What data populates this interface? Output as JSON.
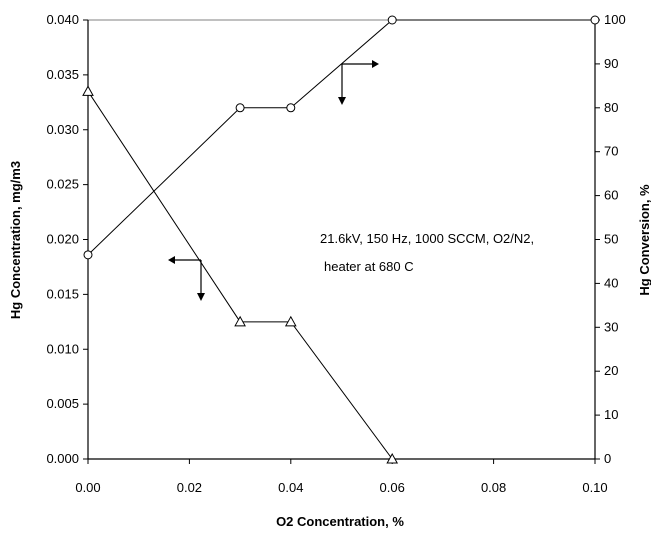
{
  "chart_data": {
    "type": "line",
    "xlabel": "O2 Concentration, %",
    "ylabel_left": "Hg Concentration, mg/m3",
    "ylabel_right": "Hg Conversion, %",
    "x_ticks": [
      "0.00",
      "0.02",
      "0.04",
      "0.06",
      "0.08",
      "0.10"
    ],
    "y_left_ticks": [
      "0.000",
      "0.005",
      "0.010",
      "0.015",
      "0.020",
      "0.025",
      "0.030",
      "0.035",
      "0.040"
    ],
    "y_right_ticks": [
      "0",
      "10",
      "20",
      "30",
      "40",
      "50",
      "60",
      "70",
      "80",
      "90",
      "100"
    ],
    "xlim": [
      0,
      0.1
    ],
    "ylim_left": [
      0,
      0.04
    ],
    "ylim_right": [
      0,
      100
    ],
    "grid": false,
    "series": [
      {
        "axis": "left",
        "marker": "triangle",
        "x": [
          0.0,
          0.03,
          0.04,
          0.06
        ],
        "values": [
          0.0335,
          0.0125,
          0.0125,
          0.0
        ]
      },
      {
        "axis": "right",
        "marker": "circle",
        "x": [
          0.0,
          0.03,
          0.04,
          0.06,
          0.1
        ],
        "values": [
          46.5,
          80,
          80,
          100,
          100
        ]
      }
    ],
    "annotation_lines": [
      "21.6kV, 150 Hz, 1000 SCCM, O2/N2,",
      "heater at 680 C"
    ],
    "pointer_arrows": [
      {
        "points_to": "left-axis",
        "series": "triangle"
      },
      {
        "points_to": "right-axis",
        "series": "circle"
      }
    ]
  }
}
